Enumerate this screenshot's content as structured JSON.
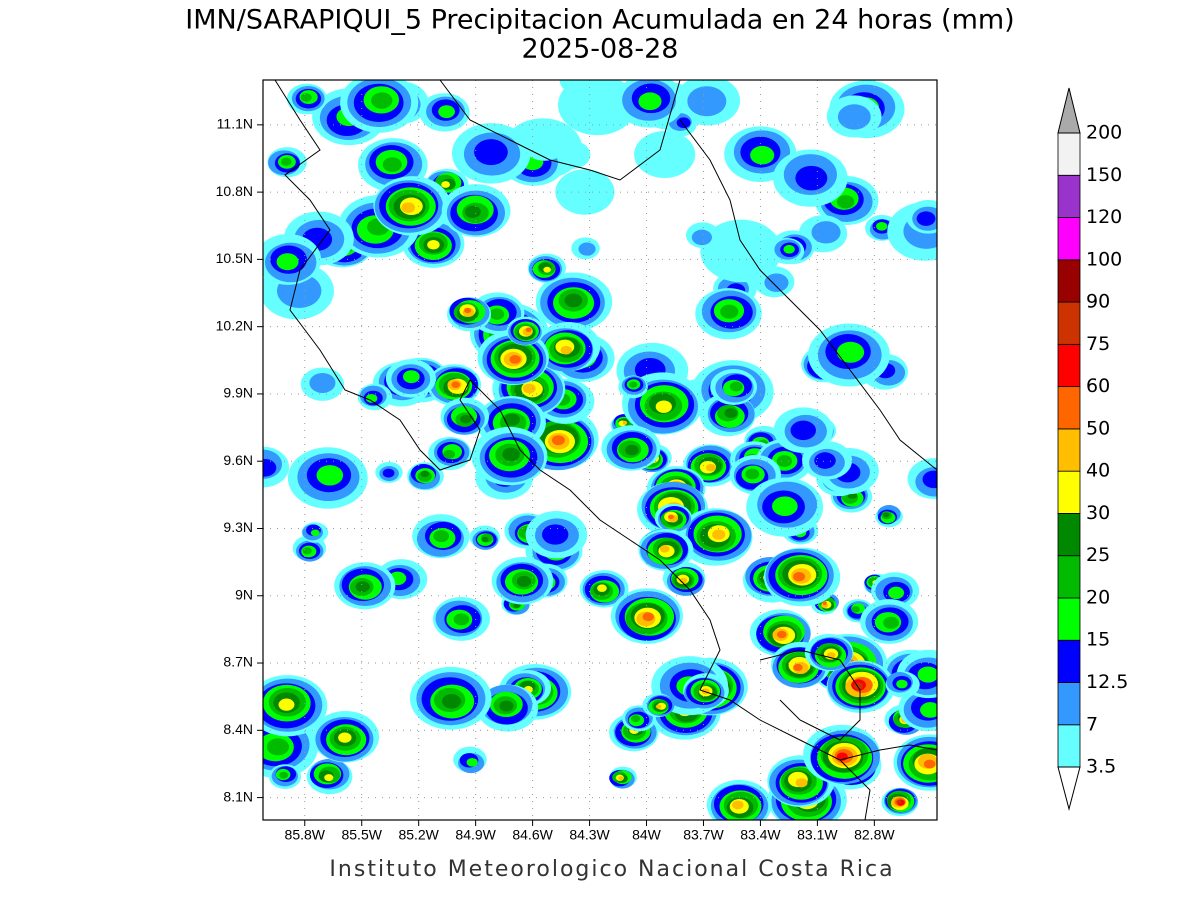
{
  "title": "IMN/SARAPIQUI_5 Precipitacion Acumulada en 24 horas (mm)",
  "subtitle": "2025-08-28",
  "credit": "Instituto Meteorologico Nacional Costa Rica",
  "map": {
    "xlim": [
      -86.02,
      -82.47
    ],
    "ylim": [
      8.0,
      11.3
    ],
    "grid": true,
    "lat_ticks": [
      {
        "value": 8.1,
        "label": "8.1N"
      },
      {
        "value": 8.4,
        "label": "8.4N"
      },
      {
        "value": 8.7,
        "label": "8.7N"
      },
      {
        "value": 9.0,
        "label": "9N"
      },
      {
        "value": 9.3,
        "label": "9.3N"
      },
      {
        "value": 9.6,
        "label": "9.6N"
      },
      {
        "value": 9.9,
        "label": "9.9N"
      },
      {
        "value": 10.2,
        "label": "10.2N"
      },
      {
        "value": 10.5,
        "label": "10.5N"
      },
      {
        "value": 10.8,
        "label": "10.8N"
      },
      {
        "value": 11.1,
        "label": "11.1N"
      }
    ],
    "lon_ticks": [
      {
        "value": -85.8,
        "label": "85.8W"
      },
      {
        "value": -85.5,
        "label": "85.5W"
      },
      {
        "value": -85.2,
        "label": "85.2W"
      },
      {
        "value": -84.9,
        "label": "84.9W"
      },
      {
        "value": -84.6,
        "label": "84.6W"
      },
      {
        "value": -84.3,
        "label": "84.3W"
      },
      {
        "value": -84.0,
        "label": "84W"
      },
      {
        "value": -83.7,
        "label": "83.7W"
      },
      {
        "value": -83.4,
        "label": "83.4W"
      },
      {
        "value": -83.1,
        "label": "83.1W"
      },
      {
        "value": -82.8,
        "label": "82.8W"
      }
    ]
  },
  "colorbar": {
    "levels": [
      3.5,
      7,
      12.5,
      15,
      20,
      25,
      30,
      40,
      50,
      60,
      75,
      90,
      100,
      120,
      150,
      200
    ],
    "colors": [
      "#66ffff",
      "#3399ff",
      "#0000ff",
      "#00ff00",
      "#00bb00",
      "#008800",
      "#ffff00",
      "#ffbf00",
      "#ff6600",
      "#ff0000",
      "#cc3300",
      "#990000",
      "#ff00ff",
      "#9933cc",
      "#f2f2f2"
    ],
    "under_color": "#ffffff",
    "over_color": "#aaaaaa"
  }
}
